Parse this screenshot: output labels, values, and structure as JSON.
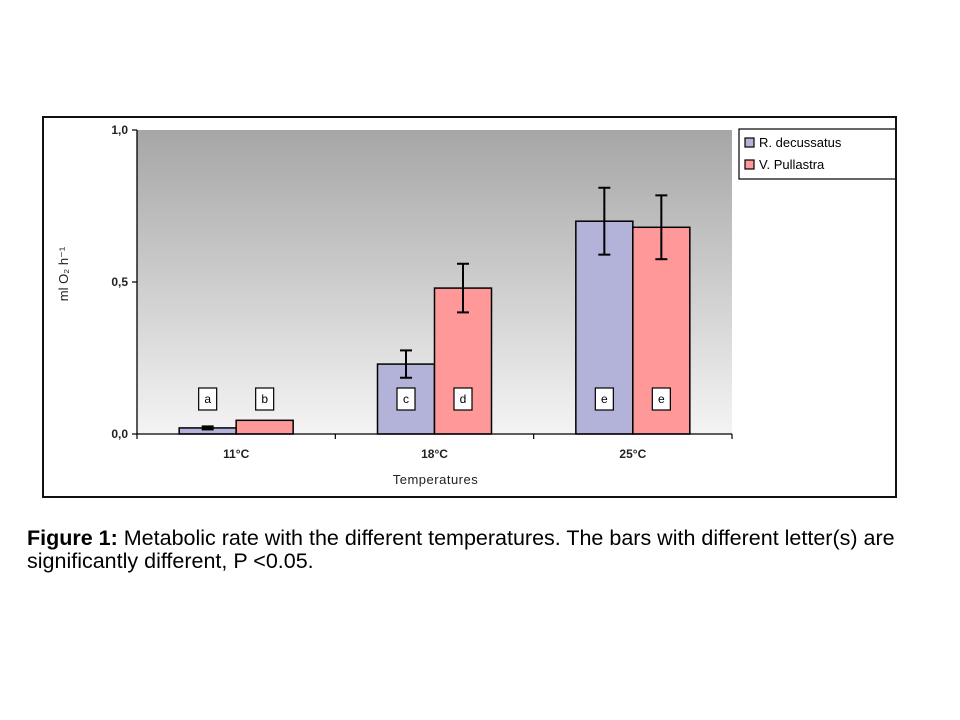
{
  "chart_data": {
    "type": "bar",
    "categories": [
      "11°C",
      "18°C",
      "25°C"
    ],
    "series": [
      {
        "name": "R. decussatus",
        "color": "#b3b3d9",
        "values": [
          0.02,
          0.23,
          0.7
        ],
        "error": [
          0.005,
          0.045,
          0.11
        ],
        "letters": [
          "a",
          "c",
          "e"
        ]
      },
      {
        "name": "V. Pullastra",
        "color": "#ff9999",
        "values": [
          0.045,
          0.48,
          0.68
        ],
        "error": [
          0.0,
          0.08,
          0.105
        ],
        "letters": [
          "b",
          "d",
          "e"
        ]
      }
    ],
    "xlabel": "Temperatures",
    "ylabel": "ml O₂ h⁻¹",
    "ylim": [
      0,
      1.0
    ],
    "yticks": [
      "0,0",
      "0,5",
      "1,0"
    ],
    "legend_position": "top-right",
    "grid": false
  },
  "caption": {
    "label": "Figure 1:",
    "text": " Metabolic rate with the different temperatures. The bars with different letter(s) are significantly different, P <0.05."
  }
}
